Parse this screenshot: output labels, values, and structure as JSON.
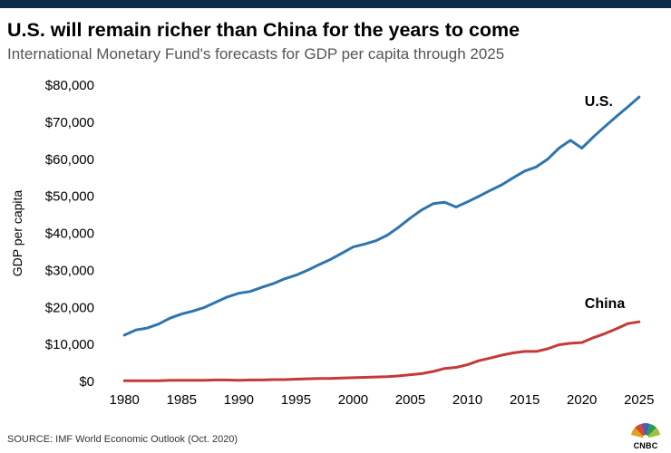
{
  "header": {
    "title": "U.S. will remain richer than China for the years to come",
    "subtitle": "International Monetary Fund's forecasts for GDP per capita through 2025"
  },
  "footer": {
    "source": "SOURCE: IMF World Economic Outlook (Oct. 2020)",
    "logo_text": "CNBC"
  },
  "colors": {
    "us": "#2f75ad",
    "china": "#c43a3a",
    "top_bar": "#0b2a4a"
  },
  "chart_data": {
    "type": "line",
    "title": "U.S. will remain richer than China for the years to come",
    "subtitle": "International Monetary Fund's forecasts for GDP per capita through 2025",
    "xlabel": "",
    "ylabel": "GDP per capita",
    "xlim": [
      1978,
      2027
    ],
    "ylim": [
      0,
      80000
    ],
    "x_ticks": [
      1980,
      1985,
      1990,
      1995,
      2000,
      2005,
      2010,
      2015,
      2020,
      2025
    ],
    "y_ticks": [
      0,
      10000,
      20000,
      30000,
      40000,
      50000,
      60000,
      70000,
      80000
    ],
    "y_tick_labels": [
      "$0",
      "$10,000",
      "$20,000",
      "$30,000",
      "$40,000",
      "$50,000",
      "$60,000",
      "$70,000",
      "$80,000"
    ],
    "grid": false,
    "x": [
      1980,
      1981,
      1982,
      1983,
      1984,
      1985,
      1986,
      1987,
      1988,
      1989,
      1990,
      1991,
      1992,
      1993,
      1994,
      1995,
      1996,
      1997,
      1998,
      1999,
      2000,
      2001,
      2002,
      2003,
      2004,
      2005,
      2006,
      2007,
      2008,
      2009,
      2010,
      2011,
      2012,
      2013,
      2014,
      2015,
      2016,
      2017,
      2018,
      2019,
      2020,
      2021,
      2022,
      2023,
      2024,
      2025
    ],
    "series": [
      {
        "name": "U.S.",
        "color": "#2f75ad",
        "values": [
          12500,
          13900,
          14400,
          15500,
          17100,
          18200,
          19000,
          20000,
          21400,
          22800,
          23800,
          24300,
          25400,
          26400,
          27700,
          28700,
          30000,
          31500,
          32900,
          34600,
          36300,
          37100,
          38000,
          39500,
          41700,
          44100,
          46300,
          48000,
          48400,
          47100,
          48500,
          50000,
          51600,
          53100,
          55000,
          56800,
          57900,
          60000,
          63000,
          65100,
          63000,
          66000,
          68800,
          71500,
          74100,
          76800
        ]
      },
      {
        "name": "China",
        "color": "#c43a3a",
        "values": [
          200,
          200,
          200,
          200,
          300,
          300,
          300,
          300,
          400,
          400,
          300,
          400,
          400,
          500,
          500,
          600,
          700,
          800,
          800,
          900,
          1000,
          1100,
          1200,
          1300,
          1500,
          1800,
          2100,
          2700,
          3500,
          3800,
          4500,
          5600,
          6300,
          7100,
          7700,
          8100,
          8100,
          8800,
          9900,
          10300,
          10500,
          11800,
          12900,
          14200,
          15600,
          16100
        ]
      }
    ],
    "annotations": [
      {
        "text": "U.S.",
        "series": "U.S."
      },
      {
        "text": "China",
        "series": "China"
      }
    ]
  }
}
